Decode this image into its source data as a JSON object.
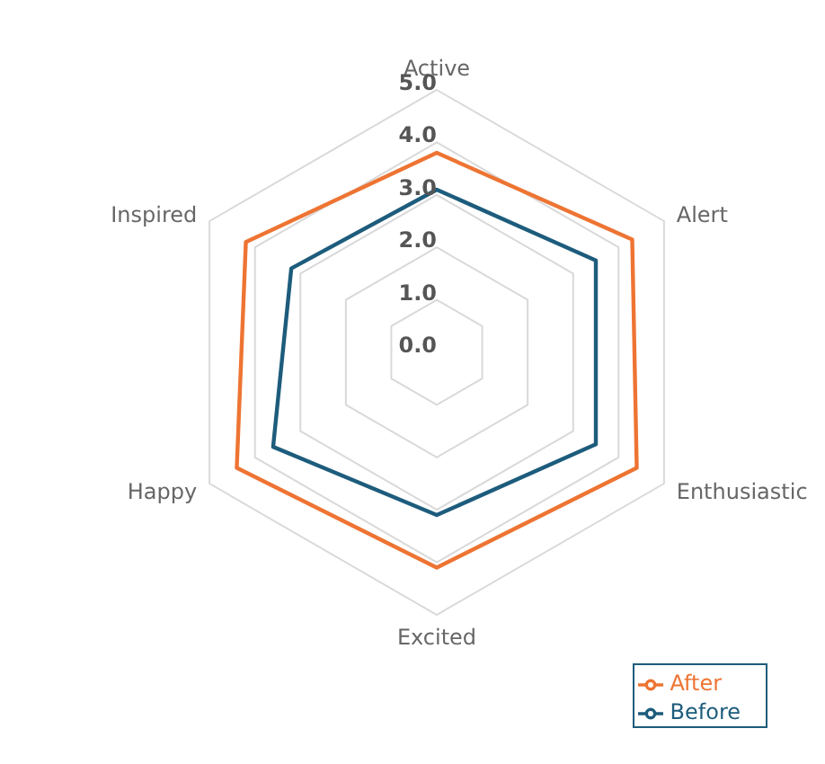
{
  "chart_data": {
    "type": "radar",
    "categories": [
      "Active",
      "Alert",
      "Enthusiastic",
      "Excited",
      "Happy",
      "Inspired"
    ],
    "series": [
      {
        "name": "Before",
        "color": "#1d5c7c",
        "values": [
          3.1,
          3.5,
          3.5,
          3.1,
          3.6,
          3.2
        ]
      },
      {
        "name": "After",
        "color": "#ee7433",
        "values": [
          3.8,
          4.3,
          4.4,
          4.1,
          4.4,
          4.2
        ]
      }
    ],
    "ylim": [
      0,
      5
    ],
    "yticks": [
      {
        "value": 0,
        "label": "0.0"
      },
      {
        "value": 1,
        "label": "1.0"
      },
      {
        "value": 2,
        "label": "2.0"
      },
      {
        "value": 3,
        "label": "3.0"
      },
      {
        "value": 4,
        "label": "4.0"
      },
      {
        "value": 5,
        "label": "5.0"
      }
    ],
    "grid": true,
    "legend": "bottom right",
    "marker": "none"
  }
}
